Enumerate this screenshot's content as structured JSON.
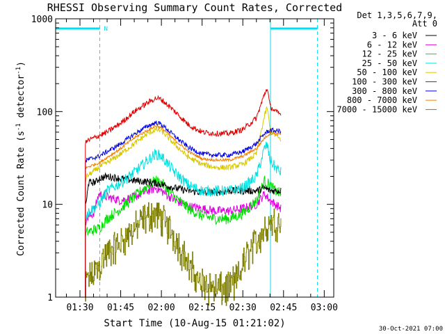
{
  "chart_data": {
    "type": "line",
    "title": "RHESSI Observing Summary Count Rates, Corrected",
    "xlabel": "Start Time (10-Aug-15 01:21:02)",
    "ylabel": "Corrected Count Rate (s",
    "ylabel_sup1": "-1",
    "ylabel_mid": " detector",
    "ylabel_sup2": "-1",
    "ylabel_end": ")",
    "y_scale": "log",
    "ylim": [
      1,
      1000
    ],
    "y_ticks": [
      "1",
      "10",
      "100",
      "1000"
    ],
    "xlim": [
      "01:21:02",
      "03:00:00"
    ],
    "x_ticks": [
      "01:30",
      "01:45",
      "02:00",
      "02:15",
      "02:30",
      "02:45",
      "03:00"
    ],
    "x_tick_minutes": [
      90,
      105,
      120,
      135,
      150,
      165,
      180
    ],
    "x_start_minutes": 81.03,
    "x_end_minutes": 183.5,
    "legend_position": "right",
    "legend_header_1": "Det 1,3,5,6,7,9,",
    "legend_header_2": "Att 0",
    "timestamp": "30-Oct-2021 07:00",
    "night_marker": "N",
    "night_intervals": [
      [
        81.03,
        97.3
      ],
      [
        160.2,
        177.5
      ]
    ],
    "data_start_minutes": 92.0,
    "data_end_minutes": 164.2,
    "series": [
      {
        "name": "3 - 6 keV",
        "color": "#000000",
        "noise": 0.04,
        "x": [
          92,
          92.5,
          93,
          96,
          97,
          100,
          105,
          110,
          115,
          120,
          125,
          130,
          135,
          140,
          145,
          150,
          155,
          158,
          160,
          162,
          164
        ],
        "values": [
          9.5,
          11,
          17,
          17.5,
          19,
          20,
          19,
          18,
          17.5,
          16.5,
          15,
          14,
          13.5,
          13.5,
          14,
          14,
          14,
          15,
          14,
          14,
          14
        ]
      },
      {
        "name": "6 - 12 keV",
        "color": "#e000e0",
        "noise": 0.05,
        "x": [
          92,
          92.5,
          95,
          97,
          100,
          105,
          110,
          115,
          118,
          120,
          125,
          130,
          135,
          140,
          145,
          150,
          155,
          158,
          160,
          162,
          164
        ],
        "values": [
          6.5,
          7,
          8,
          13,
          12,
          11,
          12,
          14,
          15,
          14,
          11,
          9.5,
          9,
          8.5,
          8.5,
          9,
          10,
          13,
          11,
          10,
          9
        ]
      },
      {
        "name": "12 - 25 keV",
        "color": "#00e000",
        "noise": 0.06,
        "x": [
          92,
          92.5,
          97,
          100,
          105,
          110,
          115,
          118,
          120,
          125,
          130,
          135,
          140,
          145,
          150,
          155,
          158,
          160,
          162,
          164
        ],
        "values": [
          4.5,
          5,
          5.5,
          7,
          9,
          12,
          16,
          18,
          17,
          12,
          9,
          7.5,
          7,
          7,
          8,
          11,
          18,
          16,
          14,
          13
        ]
      },
      {
        "name": "25 - 50 keV",
        "color": "#00e0e0",
        "noise": 0.06,
        "x": [
          92,
          92.5,
          97,
          100,
          105,
          110,
          115,
          118,
          120,
          125,
          130,
          135,
          140,
          145,
          150,
          155,
          158,
          159,
          160,
          162,
          164
        ],
        "values": [
          7,
          8,
          10,
          14,
          17,
          22,
          30,
          35,
          33,
          22,
          16,
          14,
          14,
          14,
          15,
          20,
          40,
          44,
          30,
          25,
          22
        ]
      },
      {
        "name": "50 - 100 keV",
        "color": "#d8c800",
        "noise": 0.03,
        "x": [
          92,
          92.5,
          97,
          100,
          105,
          110,
          115,
          118,
          120,
          125,
          130,
          135,
          140,
          145,
          150,
          155,
          158,
          159,
          160,
          162,
          164
        ],
        "values": [
          18,
          20,
          25,
          28,
          35,
          45,
          58,
          64,
          62,
          44,
          32,
          27,
          25,
          25,
          27,
          35,
          90,
          112,
          65,
          55,
          50
        ]
      },
      {
        "name": "100 - 300 keV",
        "color": "#e00000",
        "noise": 0.03,
        "x": [
          92,
          92.5,
          97,
          100,
          105,
          110,
          115,
          118,
          120,
          125,
          130,
          135,
          140,
          145,
          150,
          155,
          158,
          159,
          160,
          162,
          164
        ],
        "values": [
          45,
          48,
          55,
          60,
          75,
          100,
          125,
          140,
          135,
          100,
          72,
          60,
          58,
          58,
          64,
          85,
          155,
          180,
          115,
          100,
          93
        ]
      },
      {
        "name": "300 - 800 keV",
        "color": "#0000e0",
        "noise": 0.025,
        "x": [
          92,
          92.5,
          97,
          100,
          105,
          110,
          115,
          118,
          120,
          125,
          130,
          135,
          140,
          145,
          150,
          155,
          158,
          160,
          162,
          164
        ],
        "values": [
          28,
          30,
          33,
          37,
          45,
          57,
          70,
          76,
          73,
          54,
          41,
          35,
          34,
          34,
          37,
          45,
          58,
          63,
          62,
          62
        ]
      },
      {
        "name": "800 - 7000 keV",
        "color": "#f08000",
        "noise": 0.015,
        "x": [
          92,
          92.5,
          97,
          100,
          105,
          110,
          115,
          118,
          120,
          125,
          130,
          135,
          140,
          145,
          150,
          155,
          158,
          160,
          162,
          164
        ],
        "values": [
          24,
          25,
          28,
          32,
          40,
          52,
          63,
          70,
          67,
          49,
          37,
          31,
          30,
          30,
          33,
          40,
          52,
          58,
          58,
          58
        ]
      },
      {
        "name": "7000 - 15000 keV",
        "color": "#808000",
        "noise": 0.12,
        "x": [
          92,
          92.5,
          96,
          98,
          100,
          105,
          110,
          115,
          118,
          120,
          125,
          128,
          130,
          135,
          140,
          145,
          148,
          150,
          152,
          155,
          158,
          160,
          162,
          164
        ],
        "values": [
          1.1,
          1.5,
          2.0,
          2.5,
          3.0,
          4.0,
          5.5,
          7.5,
          8.0,
          7.0,
          4.5,
          3.0,
          2.0,
          1.4,
          1.3,
          1.3,
          1.6,
          2.2,
          3.0,
          4.0,
          5.5,
          6.5,
          6.5,
          6.5
        ]
      }
    ]
  }
}
